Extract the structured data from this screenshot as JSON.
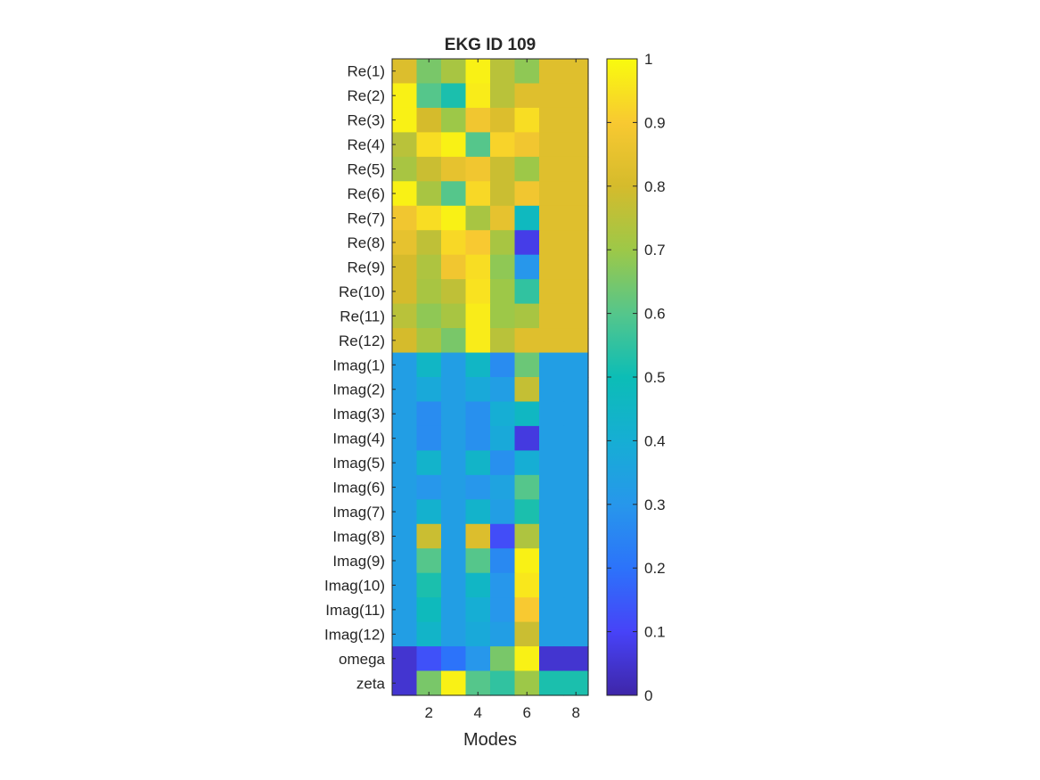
{
  "chart_data": {
    "type": "heatmap",
    "title": "EKG ID 109",
    "xlabel": "Modes",
    "ylabel": "",
    "x": [
      1,
      2,
      3,
      4,
      5,
      6,
      7,
      8
    ],
    "x_ticks": [
      2,
      4,
      6,
      8
    ],
    "y_labels": [
      "Re(1)",
      "Re(2)",
      "Re(3)",
      "Re(4)",
      "Re(5)",
      "Re(6)",
      "Re(7)",
      "Re(8)",
      "Re(9)",
      "Re(10)",
      "Re(11)",
      "Re(12)",
      "Imag(1)",
      "Imag(2)",
      "Imag(3)",
      "Imag(4)",
      "Imag(5)",
      "Imag(6)",
      "Imag(7)",
      "Imag(8)",
      "Imag(9)",
      "Imag(10)",
      "Imag(11)",
      "Imag(12)",
      "omega",
      "zeta"
    ],
    "values": [
      [
        0.82,
        0.65,
        0.72,
        0.98,
        0.75,
        0.68,
        0.83,
        0.83
      ],
      [
        0.98,
        0.6,
        0.52,
        0.97,
        0.75,
        0.83,
        0.83,
        0.83
      ],
      [
        0.98,
        0.8,
        0.7,
        0.88,
        0.82,
        0.94,
        0.83,
        0.83
      ],
      [
        0.75,
        0.94,
        0.98,
        0.6,
        0.92,
        0.88,
        0.83,
        0.83
      ],
      [
        0.72,
        0.78,
        0.85,
        0.88,
        0.78,
        0.7,
        0.83,
        0.83
      ],
      [
        0.98,
        0.72,
        0.6,
        0.93,
        0.78,
        0.88,
        0.83,
        0.83
      ],
      [
        0.88,
        0.94,
        0.98,
        0.72,
        0.85,
        0.47,
        0.83,
        0.83
      ],
      [
        0.85,
        0.76,
        0.93,
        0.9,
        0.72,
        0.08,
        0.83,
        0.83
      ],
      [
        0.8,
        0.73,
        0.88,
        0.94,
        0.68,
        0.3,
        0.83,
        0.83
      ],
      [
        0.8,
        0.72,
        0.76,
        0.95,
        0.7,
        0.55,
        0.83,
        0.83
      ],
      [
        0.75,
        0.68,
        0.72,
        0.97,
        0.7,
        0.72,
        0.83,
        0.83
      ],
      [
        0.8,
        0.72,
        0.65,
        0.97,
        0.75,
        0.83,
        0.83,
        0.83
      ],
      [
        0.33,
        0.45,
        0.33,
        0.45,
        0.27,
        0.63,
        0.33,
        0.33
      ],
      [
        0.33,
        0.38,
        0.33,
        0.38,
        0.33,
        0.77,
        0.33,
        0.33
      ],
      [
        0.33,
        0.27,
        0.33,
        0.28,
        0.4,
        0.46,
        0.33,
        0.33
      ],
      [
        0.33,
        0.27,
        0.33,
        0.28,
        0.38,
        0.07,
        0.33,
        0.33
      ],
      [
        0.33,
        0.43,
        0.33,
        0.44,
        0.28,
        0.4,
        0.33,
        0.33
      ],
      [
        0.33,
        0.3,
        0.33,
        0.3,
        0.35,
        0.6,
        0.33,
        0.33
      ],
      [
        0.33,
        0.42,
        0.33,
        0.43,
        0.33,
        0.52,
        0.33,
        0.33
      ],
      [
        0.33,
        0.78,
        0.33,
        0.82,
        0.12,
        0.73,
        0.33,
        0.33
      ],
      [
        0.33,
        0.6,
        0.33,
        0.6,
        0.26,
        0.98,
        0.33,
        0.33
      ],
      [
        0.33,
        0.52,
        0.33,
        0.45,
        0.3,
        0.96,
        0.33,
        0.33
      ],
      [
        0.33,
        0.48,
        0.33,
        0.4,
        0.3,
        0.9,
        0.33,
        0.33
      ],
      [
        0.33,
        0.44,
        0.33,
        0.38,
        0.33,
        0.78,
        0.33,
        0.33
      ],
      [
        0.05,
        0.13,
        0.2,
        0.3,
        0.65,
        0.98,
        0.05,
        0.05
      ],
      [
        0.05,
        0.65,
        0.98,
        0.6,
        0.55,
        0.7,
        0.52,
        0.52
      ]
    ],
    "clim": [
      0,
      1
    ],
    "colormap": "parula",
    "colorbar": {
      "ticks": [
        0,
        0.1,
        0.2,
        0.3,
        0.4,
        0.5,
        0.6,
        0.7,
        0.8,
        0.9,
        1
      ],
      "tick_labels": [
        "0",
        "0.1",
        "0.2",
        "0.3",
        "0.4",
        "0.5",
        "0.6",
        "0.7",
        "0.8",
        "0.9",
        "1"
      ]
    },
    "grid": false
  }
}
